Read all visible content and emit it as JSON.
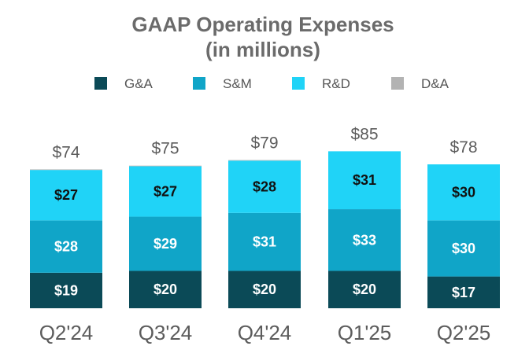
{
  "chart_data": {
    "type": "bar",
    "stacked": true,
    "title_lines": [
      "GAAP Operating Expenses",
      "(in millions)"
    ],
    "categories": [
      "Q2'24",
      "Q3'24",
      "Q4'24",
      "Q1'25",
      "Q2'25"
    ],
    "series": [
      {
        "name": "G&A",
        "color": "#0b4a57",
        "label_color": "#ffffff",
        "values": [
          19,
          20,
          20,
          20,
          17
        ],
        "labels": [
          "$19",
          "$20",
          "$20",
          "$20",
          "$17"
        ]
      },
      {
        "name": "S&M",
        "color": "#10a5c8",
        "label_color": "#ffffff",
        "values": [
          28,
          29,
          31,
          33,
          30
        ],
        "labels": [
          "$28",
          "$29",
          "$31",
          "$33",
          "$30"
        ]
      },
      {
        "name": "R&D",
        "color": "#20d3f7",
        "label_color": "#111111",
        "values": [
          27,
          27,
          28,
          31,
          30
        ],
        "labels": [
          "$27",
          "$27",
          "$28",
          "$31",
          "$30"
        ]
      },
      {
        "name": "D&A",
        "color": "#b3b3b3",
        "label_color": "#111111",
        "values": [
          0.3,
          0.3,
          0.3,
          0,
          0
        ],
        "labels": [
          "",
          "",
          "",
          "",
          ""
        ]
      }
    ],
    "totals": [
      74,
      75,
      79,
      85,
      78
    ],
    "total_labels": [
      "$74",
      "$75",
      "$79",
      "$85",
      "$78"
    ],
    "ylim": [
      0,
      85
    ],
    "legend": "top-center",
    "grid": false
  }
}
